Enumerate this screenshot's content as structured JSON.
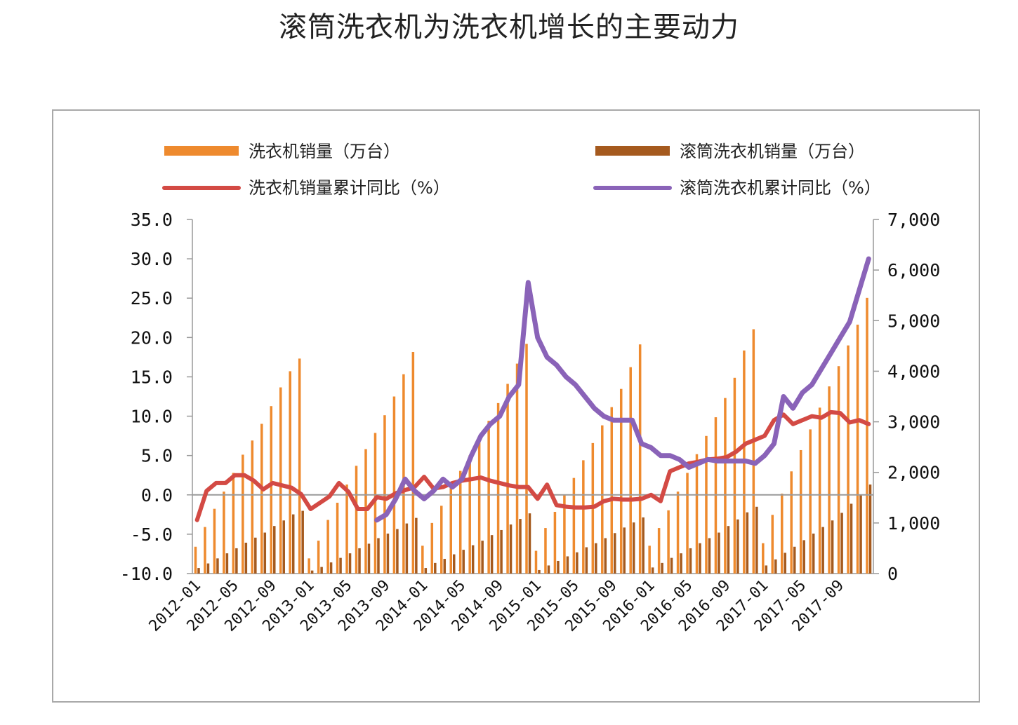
{
  "title": "滚筒洗衣机为洗衣机增长的主要动力",
  "colors": {
    "washer_bar": "#ee8a2e",
    "drum_bar": "#a55a1e",
    "washer_line": "#d34a44",
    "drum_line": "#8a63b8",
    "axis": "#999999",
    "zero_line": "#9a9a9a"
  },
  "legend": {
    "washer_sales": "洗衣机销量（万台）",
    "drum_sales": "滚筒洗衣机销量（万台）",
    "washer_yoy": "洗衣机销量累计同比（%）",
    "drum_yoy": "滚筒洗衣机累计同比（%）"
  },
  "chart_data": {
    "type": "bar",
    "x_start": "2012-01",
    "x_end": "2017-12",
    "x_tick_labels": [
      "2012-01",
      "2012-05",
      "2012-09",
      "2013-01",
      "2013-05",
      "2013-09",
      "2014-01",
      "2014-05",
      "2014-09",
      "2015-01",
      "2015-05",
      "2015-09",
      "2016-01",
      "2016-05",
      "2016-09",
      "2017-01",
      "2017-05",
      "2017-09"
    ],
    "y_left": {
      "ylim": [
        -10,
        35
      ],
      "ticks": [
        "35.0",
        "30.0",
        "25.0",
        "20.0",
        "15.0",
        "10.0",
        "5.0",
        "0.0",
        "-5.0",
        "-10.0"
      ]
    },
    "y_right": {
      "ylim": [
        0,
        7000
      ],
      "ticks": [
        "7,000",
        "6,000",
        "5,000",
        "4,000",
        "3,000",
        "2,000",
        "1,000",
        "0"
      ]
    },
    "series": [
      {
        "name": "洗衣机销量（万台）",
        "type": "bar",
        "axis": "right",
        "values": [
          530,
          920,
          1280,
          1620,
          1990,
          2350,
          2630,
          2960,
          3310,
          3680,
          4000,
          4250,
          300,
          650,
          1060,
          1400,
          1760,
          2130,
          2460,
          2780,
          3130,
          3500,
          3940,
          4380,
          550,
          1000,
          1340,
          1690,
          2030,
          2340,
          2670,
          3020,
          3370,
          3750,
          4150,
          4540,
          450,
          900,
          1220,
          1560,
          1890,
          2240,
          2580,
          2930,
          3290,
          3650,
          4080,
          4530,
          550,
          900,
          1250,
          1620,
          1990,
          2360,
          2720,
          3090,
          3470,
          3870,
          4410,
          4830,
          600,
          1160,
          1580,
          2020,
          2440,
          2850,
          3280,
          3700,
          4100,
          4510,
          4920,
          5450
        ]
      },
      {
        "name": "滚筒洗衣机销量（万台）",
        "type": "bar",
        "axis": "right",
        "values": [
          110,
          200,
          300,
          400,
          500,
          610,
          710,
          810,
          940,
          1050,
          1170,
          1240,
          60,
          130,
          220,
          310,
          400,
          500,
          590,
          700,
          790,
          880,
          990,
          1100,
          110,
          210,
          290,
          380,
          470,
          560,
          650,
          760,
          860,
          970,
          1080,
          1190,
          70,
          160,
          250,
          340,
          420,
          520,
          600,
          700,
          800,
          910,
          1010,
          1110,
          120,
          210,
          310,
          400,
          500,
          600,
          700,
          810,
          940,
          1070,
          1210,
          1320,
          160,
          280,
          410,
          530,
          660,
          790,
          920,
          1050,
          1200,
          1380,
          1560,
          1760
        ]
      },
      {
        "name": "洗衣机销量累计同比（%）",
        "type": "line",
        "axis": "left",
        "values": [
          -3.2,
          0.5,
          1.5,
          1.5,
          2.5,
          2.5,
          1.8,
          0.7,
          1.5,
          1.2,
          0.9,
          0.1,
          -1.8,
          -1.0,
          -0.2,
          1.5,
          0.4,
          -1.8,
          -1.8,
          -0.3,
          -0.5,
          0.2,
          0.6,
          1.0,
          2.3,
          0.8,
          1.0,
          1.5,
          1.8,
          2.0,
          2.2,
          1.8,
          1.5,
          1.2,
          1.0,
          1.0,
          -0.5,
          1.3,
          -1.3,
          -1.5,
          -1.6,
          -1.6,
          -1.5,
          -0.8,
          -0.5,
          -0.6,
          -0.6,
          -0.5,
          0.0,
          -0.8,
          3.0,
          3.5,
          4.0,
          4.2,
          4.5,
          4.6,
          4.8,
          5.5,
          6.5,
          7.0,
          7.5,
          9.5,
          10.2,
          9.0,
          9.5,
          10.0,
          9.8,
          10.5,
          10.4,
          9.2,
          9.5,
          9.0
        ]
      },
      {
        "name": "滚筒洗衣机累计同比（%）",
        "type": "line",
        "axis": "left",
        "values": [
          null,
          null,
          null,
          null,
          null,
          null,
          null,
          null,
          null,
          null,
          null,
          null,
          null,
          null,
          null,
          null,
          null,
          null,
          null,
          -3.2,
          -2.5,
          -0.5,
          2.0,
          0.5,
          -0.5,
          0.5,
          2.0,
          1.0,
          2.0,
          5.0,
          7.5,
          9.0,
          10.0,
          12.5,
          14.0,
          27.0,
          20.0,
          17.5,
          16.5,
          15.0,
          14.0,
          12.5,
          11.0,
          10.0,
          9.5,
          9.5,
          9.5,
          6.5,
          6.0,
          5.0,
          5.0,
          4.5,
          3.5,
          4.0,
          4.5,
          4.3,
          4.3,
          4.3,
          4.3,
          4.0,
          5.0,
          6.5,
          12.5,
          11.0,
          13.0,
          14.0,
          16.0,
          18.0,
          20.0,
          22.0,
          26.0,
          30.0
        ]
      }
    ],
    "grid": false,
    "legend_position": "top"
  }
}
